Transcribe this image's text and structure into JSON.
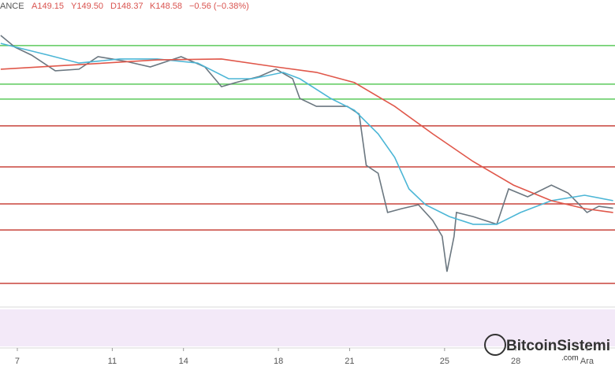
{
  "header": {
    "symbol": "ANCE",
    "open": "A149.15",
    "high": "Y149.50",
    "low": "D148.37",
    "close": "K148.58",
    "change": "−0.56 (−0.38%)"
  },
  "watermark": {
    "name": "BitcoinSistemi",
    "suffix": ".com"
  },
  "chart_data": {
    "type": "line",
    "xlim": [
      6.27,
      32.18
    ],
    "ylim": [
      105,
      230
    ],
    "xticks": [
      7,
      11,
      14,
      18,
      21,
      25,
      28,
      {
        "value": 31,
        "label": "Ara"
      }
    ],
    "series": [
      {
        "color": "#6b7780",
        "x": [
          6.3,
          6.9,
          7.6,
          8.6,
          9.6,
          10.4,
          11.0,
          11.6,
          12.6,
          13.9,
          14.9,
          15.6,
          16.2,
          17.2,
          17.9,
          18.6,
          18.9,
          19.6,
          20.2,
          20.9,
          21.4,
          21.7,
          22.2,
          22.6,
          23.2,
          23.9,
          24.5,
          24.9,
          25.1,
          25.4,
          25.5,
          26.2,
          27.2,
          27.7,
          28.5,
          29.5,
          30.2,
          31.0,
          31.5,
          32.1
        ],
        "values": [
          224.8,
          219.6,
          216.1,
          209.2,
          209.9,
          215.4,
          214.4,
          213.3,
          210.9,
          215.4,
          210.9,
          202.2,
          204.0,
          206.7,
          209.9,
          205.7,
          197.0,
          193.5,
          193.5,
          193.5,
          190.1,
          167.5,
          164.0,
          146.7,
          148.4,
          150.1,
          143.2,
          136.2,
          120.6,
          136.2,
          146.7,
          144.9,
          141.5,
          157.1,
          153.6,
          158.8,
          155.3,
          146.7,
          149.4,
          148.6
        ]
      },
      {
        "color": "#4cb6d6",
        "x": [
          6.3,
          8.3,
          9.6,
          11.3,
          12.9,
          14.6,
          15.9,
          16.9,
          18.2,
          18.9,
          20.2,
          21.2,
          22.2,
          22.9,
          23.5,
          24.2,
          25.2,
          26.2,
          27.2,
          28.2,
          29.5,
          30.9,
          32.1
        ],
        "values": [
          221.3,
          216.1,
          212.6,
          214.4,
          214.4,
          212.6,
          205.7,
          205.7,
          208.5,
          205.7,
          197.0,
          191.8,
          181.4,
          171.0,
          157.1,
          150.1,
          144.9,
          141.5,
          141.5,
          146.7,
          151.9,
          154.3,
          151.9
        ]
      },
      {
        "color": "#e0574a",
        "x": [
          6.3,
          9.6,
          12.9,
          15.6,
          17.9,
          19.6,
          21.2,
          22.9,
          24.5,
          26.2,
          27.9,
          29.5,
          30.9,
          32.1
        ],
        "values": [
          209.9,
          211.9,
          214.0,
          214.4,
          210.9,
          208.5,
          204.0,
          193.5,
          181.4,
          169.2,
          158.8,
          151.9,
          148.4,
          146.7
        ]
      }
    ],
    "hlines": [
      {
        "value": 220.3,
        "color": "#5cc95c"
      },
      {
        "value": 203.3,
        "color": "#5cc95c"
      },
      {
        "value": 196.7,
        "color": "#5cc95c"
      },
      {
        "value": 184.9,
        "color": "#c8433b"
      },
      {
        "value": 166.8,
        "color": "#c8433b"
      },
      {
        "value": 150.5,
        "color": "#c8433b"
      },
      {
        "value": 139.0,
        "color": "#c8433b"
      },
      {
        "value": 115.4,
        "color": "#c8433b"
      }
    ]
  }
}
